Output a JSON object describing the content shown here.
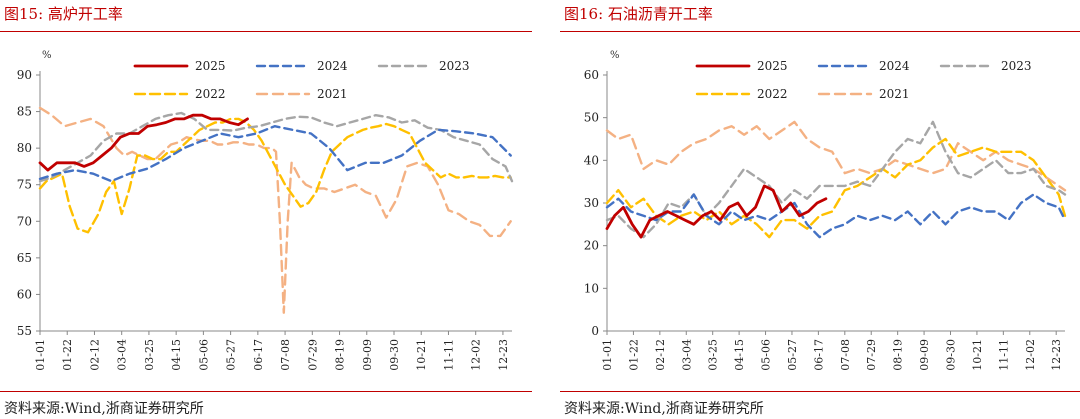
{
  "panels": [
    {
      "title": "图15:   高炉开工率",
      "source": "资料来源:Wind,浙商证券研究所",
      "chart_data": {
        "type": "line",
        "unit": "%",
        "ylim": [
          55,
          90
        ],
        "yticks": [
          55,
          60,
          65,
          70,
          75,
          80,
          85,
          90
        ],
        "xlim": [
          1,
          365
        ],
        "xtick_labels": [
          "01-01",
          "01-22",
          "02-12",
          "03-04",
          "03-25",
          "04-15",
          "05-06",
          "05-27",
          "06-17",
          "07-08",
          "07-29",
          "08-19",
          "09-09",
          "09-30",
          "10-21",
          "11-11",
          "12-02",
          "12-23"
        ],
        "legend": [
          "2025",
          "2024",
          "2023",
          "2022",
          "2021"
        ],
        "series": [
          {
            "name": "2025",
            "color": "#c00000",
            "dash": "",
            "width": 2.8,
            "x": [
              1,
              7,
              14,
              21,
              28,
              35,
              42,
              49,
              56,
              63,
              70,
              77,
              84,
              91,
              98,
              105,
              112,
              119,
              126,
              133,
              140,
              147,
              154,
              161
            ],
            "y": [
              78,
              77,
              78,
              78,
              78,
              77.5,
              78,
              79,
              80,
              81.5,
              82,
              82,
              83,
              83.2,
              83.5,
              84,
              84,
              84.5,
              84.5,
              84,
              84,
              83.5,
              83.2,
              84
            ]
          },
          {
            "name": "2024",
            "color": "#4472c4",
            "dash": "8,5",
            "width": 2.4,
            "x": [
              1,
              14,
              28,
              42,
              56,
              70,
              84,
              98,
              112,
              126,
              140,
              154,
              168,
              182,
              196,
              210,
              224,
              238,
              252,
              266,
              280,
              294,
              308,
              322,
              336,
              350,
              364
            ],
            "y": [
              75.8,
              76.5,
              77,
              76.5,
              75.5,
              76.5,
              77.2,
              78.5,
              80,
              81,
              82,
              81.5,
              82,
              83,
              82.5,
              82,
              80,
              77,
              78,
              78,
              79,
              81,
              82.5,
              82.3,
              82,
              81.5,
              79
            ]
          },
          {
            "name": "2023",
            "color": "#a6a6a6",
            "dash": "8,5",
            "width": 2.4,
            "x": [
              1,
              10,
              20,
              30,
              40,
              50,
              60,
              70,
              80,
              90,
              100,
              110,
              120,
              130,
              140,
              150,
              160,
              170,
              180,
              190,
              200,
              210,
              220,
              230,
              240,
              250,
              260,
              270,
              280,
              290,
              300,
              310,
              320,
              330,
              340,
              350,
              360,
              365
            ],
            "y": [
              75.5,
              76,
              77,
              78,
              79,
              81,
              82,
              82,
              83,
              84,
              84.5,
              84.8,
              84,
              82.5,
              82.5,
              82.4,
              82.8,
              83,
              83.5,
              84,
              84.3,
              84.2,
              83.5,
              83,
              83.5,
              84,
              84.5,
              84.2,
              83.5,
              83.8,
              82.8,
              82.5,
              81.5,
              81,
              80.5,
              78.5,
              77.5,
              75.5
            ]
          },
          {
            "name": "2022",
            "color": "#ffc000",
            "dash": "10,5",
            "width": 2.4,
            "x": [
              1,
              6,
              12,
              18,
              24,
              30,
              38,
              46,
              52,
              58,
              64,
              70,
              76,
              82,
              88,
              94,
              100,
              106,
              112,
              118,
              124,
              130,
              136,
              142,
              148,
              154,
              160,
              166,
              172,
              178,
              184,
              190,
              196,
              202,
              208,
              214,
              220,
              226,
              232,
              238,
              244,
              250,
              256,
              262,
              268,
              274,
              280,
              286,
              292,
              298,
              304,
              310,
              316,
              322,
              328,
              334,
              340,
              346,
              352,
              358,
              364
            ],
            "y": [
              74.5,
              75.5,
              76,
              76.5,
              72,
              69,
              68.5,
              71,
              74,
              75.5,
              71,
              74.5,
              79,
              79,
              78.5,
              78.5,
              79.5,
              79.5,
              80.5,
              81.5,
              82.5,
              83,
              83.5,
              83.5,
              84,
              84,
              83.5,
              82.5,
              81,
              79,
              77,
              75,
              73.5,
              72,
              72.5,
              74,
              77,
              79.5,
              80.5,
              81.5,
              82,
              82.5,
              82.8,
              83,
              83.3,
              83,
              82.5,
              82,
              80,
              78,
              77,
              76,
              76.5,
              76,
              76,
              76.2,
              76,
              76,
              76.2,
              76,
              76
            ]
          },
          {
            "name": "2021",
            "color": "#f4b183",
            "dash": "10,6",
            "width": 2.4,
            "x": [
              1,
              10,
              20,
              30,
              40,
              50,
              60,
              66,
              72,
              78,
              84,
              90,
              96,
              102,
              108,
              114,
              120,
              126,
              132,
              138,
              144,
              150,
              156,
              162,
              168,
              174,
              180,
              183,
              186,
              189,
              192,
              195,
              198,
              201,
              206,
              212,
              220,
              228,
              236,
              244,
              252,
              260,
              268,
              276,
              284,
              292,
              300,
              308,
              316,
              324,
              332,
              340,
              348,
              356,
              364
            ],
            "y": [
              85.5,
              84.5,
              83,
              83.5,
              84,
              83,
              80,
              79,
              79.5,
              79,
              78.5,
              78.5,
              79.5,
              80.5,
              80.8,
              81.5,
              81.2,
              81,
              81,
              80.5,
              80.5,
              80.8,
              80.8,
              80.5,
              80.5,
              80,
              80,
              79.5,
              70,
              57.5,
              70,
              78,
              77,
              76,
              75,
              74.5,
              74.5,
              74,
              74.5,
              75,
              74,
              73.5,
              70.5,
              73,
              77.5,
              78,
              77.5,
              75,
              71.5,
              71,
              70,
              69.5,
              68,
              68,
              70
            ]
          }
        ]
      }
    },
    {
      "title": "图16:   石油沥青开工率",
      "source": "资料来源:Wind,浙商证券研究所",
      "chart_data": {
        "type": "line",
        "unit": "%",
        "ylim": [
          0,
          60
        ],
        "yticks": [
          0,
          10,
          20,
          30,
          40,
          50,
          60
        ],
        "xlim": [
          1,
          365
        ],
        "xtick_labels": [
          "01-01",
          "01-22",
          "02-12",
          "03-04",
          "03-25",
          "04-15",
          "05-06",
          "05-27",
          "06-17",
          "07-08",
          "07-29",
          "08-19",
          "09-09",
          "09-30",
          "10-21",
          "11-11",
          "12-02",
          "12-23"
        ],
        "legend": [
          "2025",
          "2024",
          "2023",
          "2022",
          "2021"
        ],
        "series": [
          {
            "name": "2025",
            "color": "#c00000",
            "dash": "",
            "width": 2.8,
            "x": [
              1,
              7,
              14,
              21,
              28,
              35,
              42,
              49,
              56,
              63,
              70,
              77,
              84,
              91,
              98,
              105,
              112,
              119,
              126,
              133,
              140,
              147,
              154,
              161,
              168,
              175
            ],
            "y": [
              24,
              27,
              29,
              25,
              22,
              26,
              27,
              28,
              27,
              26,
              25,
              27,
              28,
              26,
              29,
              30,
              27,
              29,
              34,
              33,
              28,
              30,
              27,
              28,
              30,
              31
            ]
          },
          {
            "name": "2024",
            "color": "#4472c4",
            "dash": "8,5",
            "width": 2.4,
            "x": [
              1,
              10,
              20,
              30,
              40,
              50,
              60,
              70,
              80,
              90,
              100,
              110,
              120,
              130,
              140,
              150,
              160,
              170,
              180,
              190,
              200,
              210,
              220,
              230,
              240,
              250,
              260,
              270,
              280,
              290,
              300,
              310,
              320,
              330,
              340,
              350,
              360,
              365
            ],
            "y": [
              29,
              31,
              28,
              27,
              26,
              28,
              28,
              32,
              27,
              25,
              28,
              26,
              27,
              26,
              28,
              30,
              25,
              22,
              24,
              25,
              27,
              26,
              27,
              26,
              28,
              25,
              28,
              25,
              28,
              29,
              28,
              28,
              26,
              30,
              32,
              30,
              29,
              26
            ]
          },
          {
            "name": "2023",
            "color": "#a6a6a6",
            "dash": "8,5",
            "width": 2.4,
            "x": [
              1,
              10,
              20,
              30,
              40,
              50,
              60,
              70,
              80,
              90,
              100,
              110,
              120,
              130,
              140,
              150,
              160,
              170,
              180,
              190,
              200,
              210,
              220,
              230,
              240,
              250,
              260,
              270,
              280,
              290,
              300,
              310,
              320,
              330,
              340,
              350,
              360,
              365
            ],
            "y": [
              26,
              27,
              24,
              22,
              25,
              30,
              29,
              32,
              27,
              30,
              34,
              38,
              36,
              34,
              30,
              33,
              31,
              34,
              34,
              34,
              35,
              34,
              38,
              42,
              45,
              44,
              49,
              42,
              37,
              36,
              38,
              40,
              37,
              37,
              38,
              34,
              33,
              32
            ]
          },
          {
            "name": "2022",
            "color": "#ffc000",
            "dash": "10,5",
            "width": 2.4,
            "x": [
              1,
              10,
              20,
              30,
              40,
              50,
              60,
              70,
              80,
              90,
              100,
              110,
              120,
              130,
              140,
              150,
              160,
              170,
              180,
              190,
              200,
              210,
              220,
              230,
              240,
              250,
              260,
              270,
              280,
              290,
              300,
              310,
              320,
              330,
              340,
              350,
              360,
              365
            ],
            "y": [
              30,
              33,
              29,
              31,
              27,
              25,
              27,
              28,
              26,
              28,
              25,
              27,
              25,
              22,
              26,
              26,
              24,
              27,
              28,
              33,
              34,
              36,
              38,
              36,
              39,
              40,
              43,
              45,
              41,
              42,
              43,
              42,
              42,
              42,
              40,
              36,
              32,
              27
            ]
          },
          {
            "name": "2021",
            "color": "#f4b183",
            "dash": "10,6",
            "width": 2.4,
            "x": [
              1,
              10,
              20,
              30,
              40,
              50,
              60,
              70,
              80,
              90,
              100,
              110,
              120,
              130,
              140,
              150,
              160,
              170,
              180,
              190,
              200,
              210,
              220,
              230,
              240,
              250,
              260,
              270,
              280,
              290,
              300,
              310,
              320,
              330,
              340,
              350,
              360,
              365
            ],
            "y": [
              47,
              45,
              46,
              38,
              40,
              39,
              42,
              44,
              45,
              47,
              48,
              46,
              48,
              45,
              47,
              49,
              45,
              43,
              42,
              37,
              38,
              37,
              38,
              40,
              39,
              38,
              37,
              38,
              44,
              42,
              40,
              42,
              40,
              39,
              38,
              36,
              34,
              33
            ]
          }
        ]
      }
    }
  ]
}
